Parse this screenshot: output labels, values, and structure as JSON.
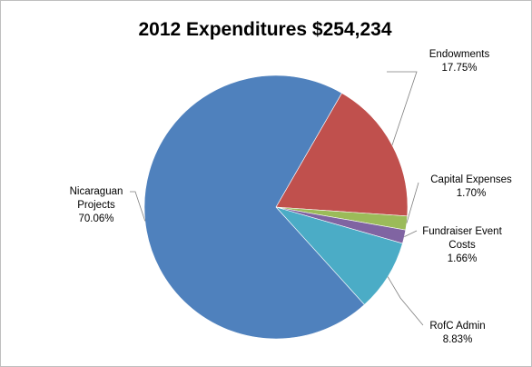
{
  "chart_data": {
    "type": "pie",
    "title": "2012 Expenditures $254,234",
    "slices": [
      {
        "label_lines": [
          "Endowments",
          "17.75%"
        ],
        "value": 17.75,
        "color": "#c0504d"
      },
      {
        "label_lines": [
          "Capital Expenses",
          "1.70%"
        ],
        "value": 1.7,
        "color": "#9bbb59"
      },
      {
        "label_lines": [
          "Fundraiser Event",
          "Costs",
          "1.66%"
        ],
        "value": 1.66,
        "color": "#8064a2"
      },
      {
        "label_lines": [
          "RofC Admin",
          "8.83%"
        ],
        "value": 8.83,
        "color": "#4bacc6"
      },
      {
        "label_lines": [
          "Nicaraguan",
          "Projects",
          "70.06%"
        ],
        "value": 70.06,
        "color": "#4f81bd"
      }
    ],
    "legend": "none"
  }
}
